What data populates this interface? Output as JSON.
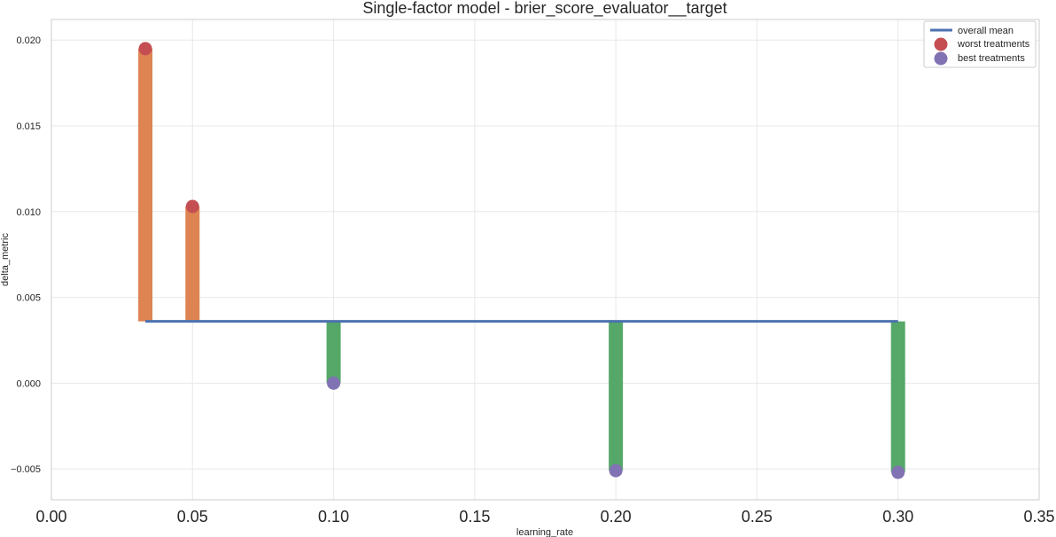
{
  "chart_data": {
    "type": "scatter",
    "title": "Single-factor model - brier_score_evaluator__target",
    "xlabel": "learning_rate",
    "ylabel": "delta_metric",
    "xlim": [
      0.0,
      0.35
    ],
    "ylim": [
      -0.0068,
      0.0212
    ],
    "xticks": [
      "0.00",
      "0.05",
      "0.10",
      "0.15",
      "0.20",
      "0.25",
      "0.30",
      "0.35"
    ],
    "xtick_values": [
      0.0,
      0.05,
      0.1,
      0.15,
      0.2,
      0.25,
      0.3,
      0.35
    ],
    "yticks": [
      "−0.005",
      "0.000",
      "0.005",
      "0.010",
      "0.015",
      "0.020"
    ],
    "ytick_values": [
      -0.005,
      0.0,
      0.005,
      0.01,
      0.015,
      0.02
    ],
    "grid": true,
    "legend_position": "top-right",
    "overall_mean": {
      "name": "overall mean",
      "value": 0.0036,
      "x_range": [
        0.0333,
        0.3
      ],
      "color": "#4c72b0"
    },
    "worst_treatments": {
      "name": "worst treatments",
      "x": [
        0.0333,
        0.05
      ],
      "y": [
        0.0195,
        0.0103
      ],
      "bar_color": "#dd8452",
      "marker_color": "#c44e52"
    },
    "best_treatments": {
      "name": "best treatments",
      "x": [
        0.1,
        0.2,
        0.3
      ],
      "y": [
        0.0,
        -0.0051,
        -0.0052
      ],
      "bar_color": "#55a868",
      "marker_color": "#8172b3"
    }
  }
}
